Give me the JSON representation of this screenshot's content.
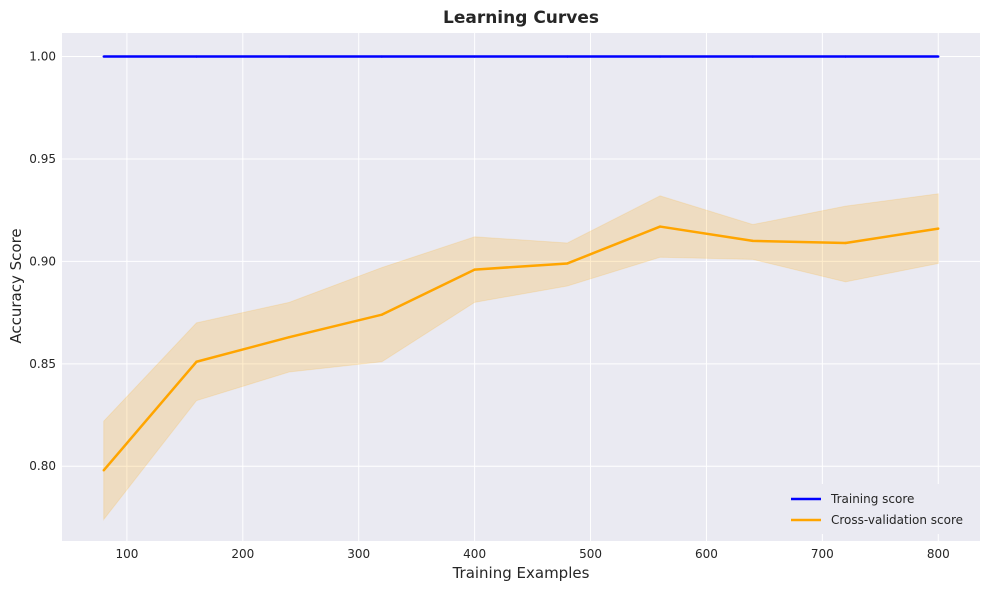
{
  "chart_data": {
    "type": "line",
    "title": "Learning Curves",
    "xlabel": "Training Examples",
    "ylabel": "Accuracy Score",
    "xlim": [
      44,
      836
    ],
    "ylim": [
      0.7635,
      1.0115
    ],
    "x_ticks": [
      100,
      200,
      300,
      400,
      500,
      600,
      700,
      800
    ],
    "x_tick_labels": [
      "100",
      "200",
      "300",
      "400",
      "500",
      "600",
      "700",
      "800"
    ],
    "y_ticks": [
      0.8,
      0.85,
      0.9,
      0.95,
      1.0
    ],
    "y_tick_labels": [
      "0.80",
      "0.85",
      "0.90",
      "0.95",
      "1.00"
    ],
    "grid": true,
    "legend_position": "bottom-right",
    "x": [
      80,
      160,
      240,
      320,
      400,
      480,
      560,
      640,
      720,
      800
    ],
    "series": [
      {
        "name": "Training score",
        "color": "#0000ff",
        "values": [
          1.0,
          1.0,
          1.0,
          1.0,
          1.0,
          1.0,
          1.0,
          1.0,
          1.0,
          1.0
        ],
        "lower": [
          1.0,
          1.0,
          1.0,
          1.0,
          1.0,
          1.0,
          1.0,
          1.0,
          1.0,
          1.0
        ],
        "upper": [
          1.0,
          1.0,
          1.0,
          1.0,
          1.0,
          1.0,
          1.0,
          1.0,
          1.0,
          1.0
        ]
      },
      {
        "name": "Cross-validation score",
        "color": "#ffa500",
        "values": [
          0.798,
          0.851,
          0.863,
          0.874,
          0.896,
          0.899,
          0.917,
          0.91,
          0.909,
          0.916
        ],
        "lower": [
          0.774,
          0.832,
          0.846,
          0.851,
          0.88,
          0.888,
          0.902,
          0.901,
          0.89,
          0.899
        ],
        "upper": [
          0.822,
          0.87,
          0.88,
          0.897,
          0.912,
          0.909,
          0.932,
          0.918,
          0.927,
          0.933
        ]
      }
    ]
  }
}
